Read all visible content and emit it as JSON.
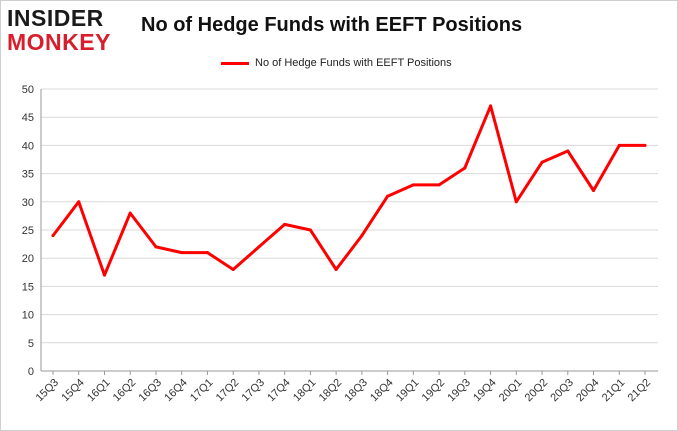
{
  "logo": {
    "top": "INSIDER",
    "bottom": "MONKEY"
  },
  "chart_data": {
    "type": "line",
    "title": "No of Hedge Funds with EEFT Positions",
    "xlabel": "",
    "ylabel": "",
    "categories": [
      "15Q3",
      "15Q4",
      "16Q1",
      "16Q2",
      "16Q3",
      "16Q4",
      "17Q1",
      "17Q2",
      "17Q3",
      "17Q4",
      "18Q1",
      "18Q2",
      "18Q3",
      "18Q4",
      "19Q1",
      "19Q2",
      "19Q3",
      "19Q4",
      "20Q1",
      "20Q2",
      "20Q3",
      "20Q4",
      "21Q1",
      "21Q2"
    ],
    "series": [
      {
        "name": "No of Hedge Funds with EEFT Positions",
        "values": [
          24,
          30,
          17,
          28,
          22,
          21,
          21,
          18,
          22,
          26,
          25,
          18,
          24,
          31,
          33,
          33,
          36,
          47,
          30,
          37,
          39,
          32,
          40,
          40
        ]
      }
    ],
    "ylim": [
      0,
      50
    ],
    "yticks": [
      0,
      5,
      10,
      15,
      20,
      25,
      30,
      35,
      40,
      45,
      50
    ],
    "grid": true,
    "legend": "top-center",
    "colors": {
      "line": "#ff0000",
      "grid": "#d9d9d9"
    }
  }
}
